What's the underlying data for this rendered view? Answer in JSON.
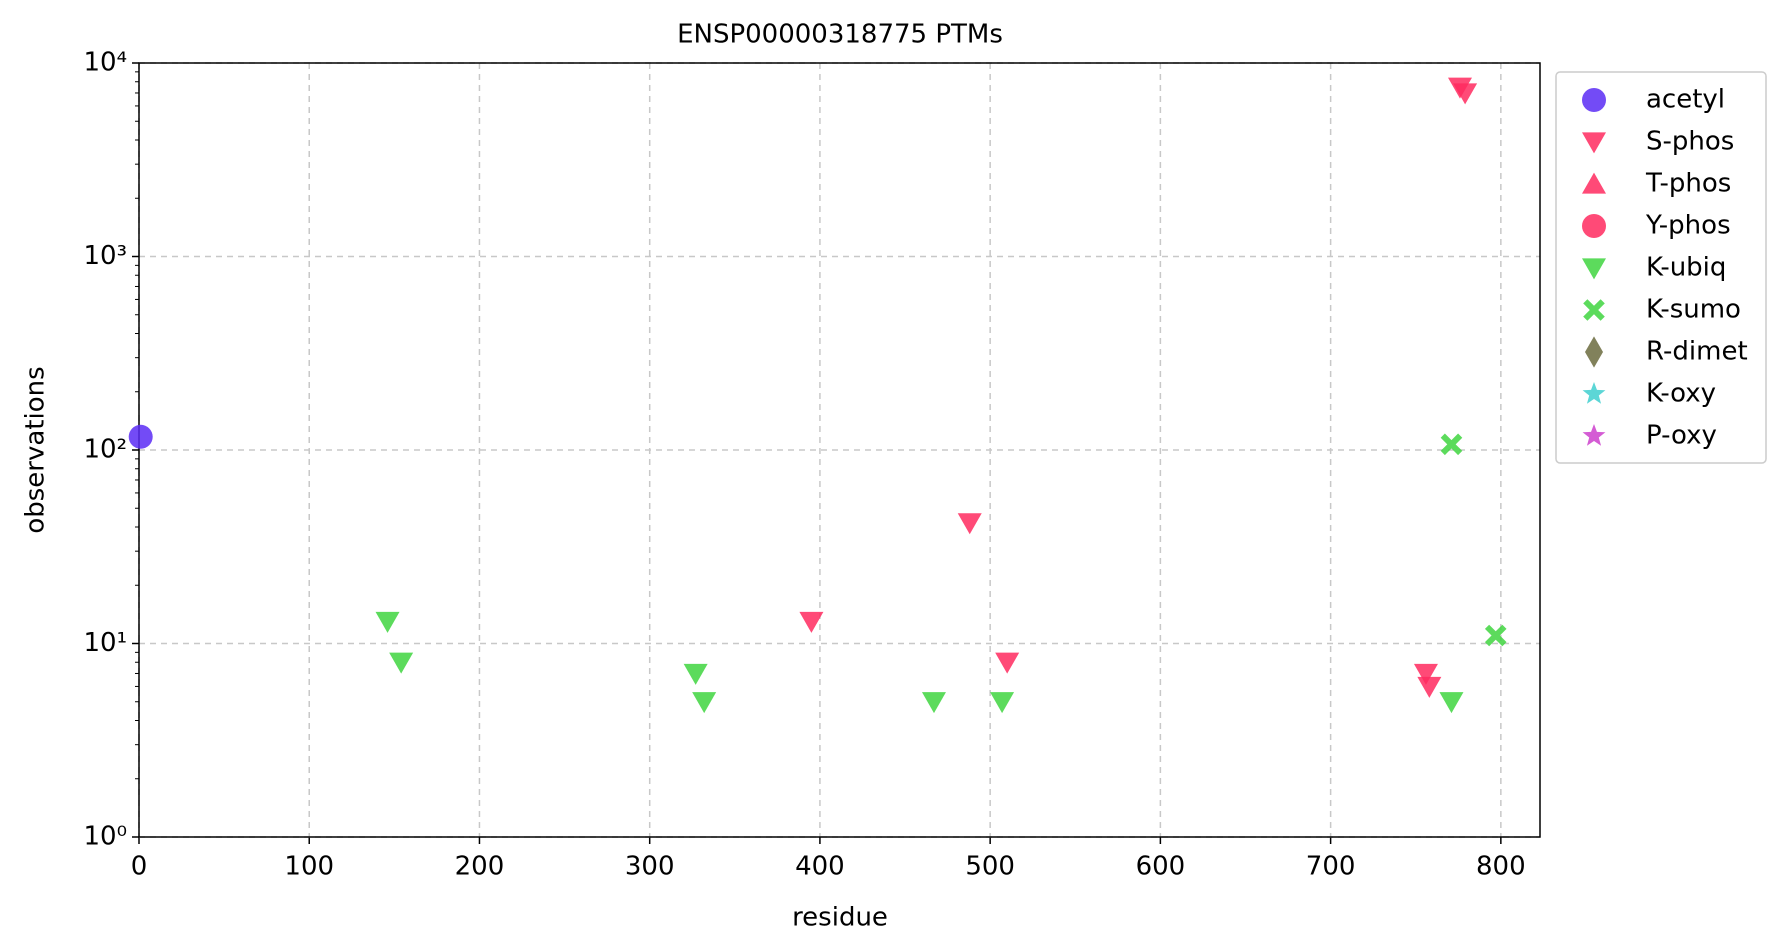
{
  "chart_data": {
    "type": "scatter",
    "title": "ENSP00000318775 PTMs",
    "x_label": "residue",
    "y_label": "observations",
    "xlim": [
      0,
      823
    ],
    "xticks": [
      0,
      100,
      200,
      300,
      400,
      500,
      600,
      700,
      800
    ],
    "ylim": [
      1,
      10000
    ],
    "log_y": true,
    "grid": true,
    "legend": "outside right",
    "yticks": [
      {
        "value": 1,
        "label": "10⁰"
      },
      {
        "value": 10,
        "label": "10¹"
      },
      {
        "value": 100,
        "label": "10²"
      },
      {
        "value": 1000,
        "label": "10³"
      },
      {
        "value": 10000,
        "label": "10⁴"
      }
    ],
    "series": [
      {
        "name": "acetyl",
        "color": "#5b2cf5",
        "marker": "circle",
        "x": [
          1
        ],
        "values": [
          117
        ]
      },
      {
        "name": "S-phos",
        "color": "#ff2a5f",
        "marker": "triangle-down",
        "x": [
          776,
          779,
          395,
          488,
          510,
          756,
          758
        ],
        "values": [
          7500,
          7000,
          13,
          42,
          8,
          7,
          6
        ]
      },
      {
        "name": "T-phos",
        "color": "#ff2a5f",
        "marker": "triangle-up",
        "x": [],
        "values": []
      },
      {
        "name": "Y-phos",
        "color": "#ff2a5f",
        "marker": "circle",
        "x": [],
        "values": []
      },
      {
        "name": "K-ubiq",
        "color": "#3fd53f",
        "marker": "triangle-down",
        "x": [
          146,
          154,
          327,
          332,
          467,
          507,
          771
        ],
        "values": [
          13,
          8,
          7,
          5,
          5,
          5,
          5
        ]
      },
      {
        "name": "K-sumo",
        "color": "#3fd53f",
        "marker": "x",
        "x": [
          771,
          797
        ],
        "values": [
          107,
          11
        ]
      },
      {
        "name": "R-dimet",
        "color": "#6b6b3e",
        "marker": "diamond",
        "x": [],
        "values": []
      },
      {
        "name": "K-oxy",
        "color": "#3fcfcf",
        "marker": "star",
        "x": [],
        "values": []
      },
      {
        "name": "P-oxy",
        "color": "#cc3fcc",
        "marker": "star",
        "x": [],
        "values": []
      }
    ]
  }
}
